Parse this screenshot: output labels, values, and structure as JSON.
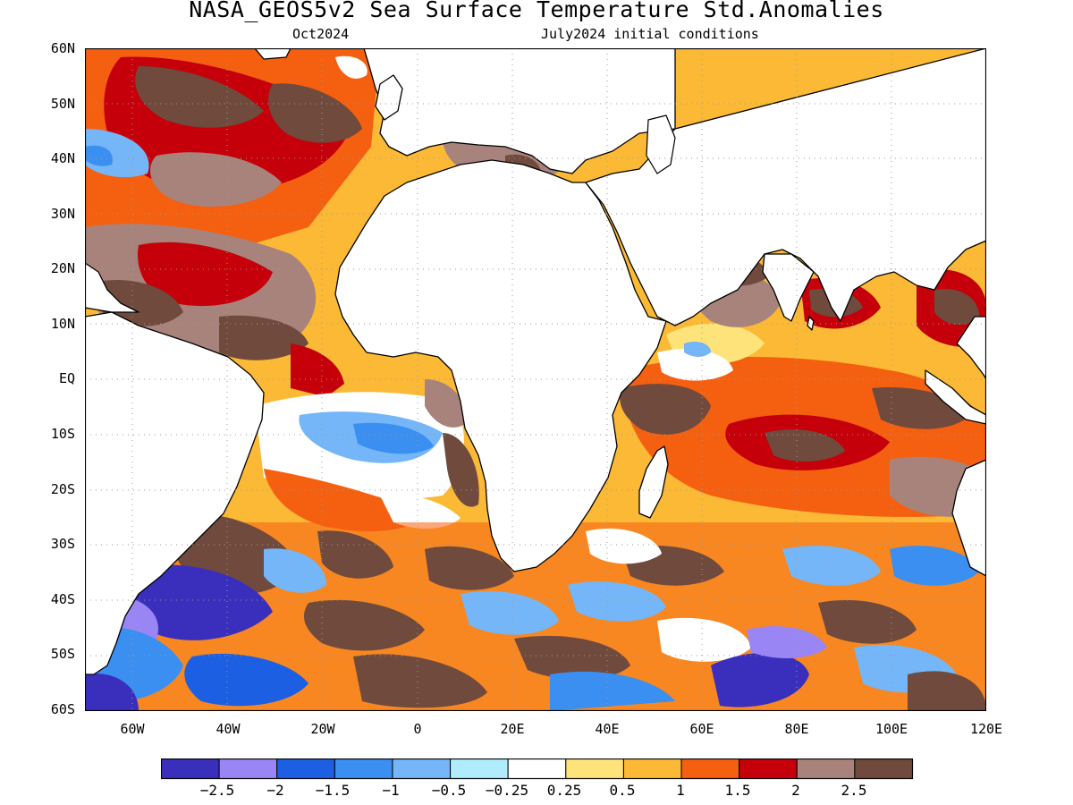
{
  "title": "NASA_GEOS5v2 Sea Surface Temperature Std.Anomalies",
  "subtitle_left": "Oct2024",
  "subtitle_right": "July2024 initial conditions",
  "y_axis": {
    "labels": [
      "60N",
      "50N",
      "40N",
      "30N",
      "20N",
      "10N",
      "EQ",
      "10S",
      "20S",
      "30S",
      "40S",
      "50S",
      "60S"
    ],
    "range": [
      -60,
      60
    ]
  },
  "x_axis": {
    "labels": [
      "60W",
      "40W",
      "20W",
      "0",
      "20E",
      "40E",
      "60E",
      "80E",
      "100E",
      "120E"
    ],
    "range": [
      -70,
      120
    ]
  },
  "colorbar": {
    "colors": [
      "#3a2fbd",
      "#9a85f5",
      "#1c5fe3",
      "#3a8ff0",
      "#74b6f7",
      "#b0ecfc",
      "#ffffff",
      "#fde37a",
      "#fbb936",
      "#f55f10",
      "#c6000b",
      "#a8837c",
      "#6f4a3d"
    ],
    "labels": [
      "-2.5",
      "-2",
      "-1.5",
      "-1",
      "-0.5",
      "-0.25",
      "0.25",
      "0.5",
      "1",
      "1.5",
      "2",
      "2.5"
    ]
  },
  "legend_colors": {
    "land": "#ffffff",
    "grid": "#9a9a9a",
    "coast": "#000000"
  }
}
